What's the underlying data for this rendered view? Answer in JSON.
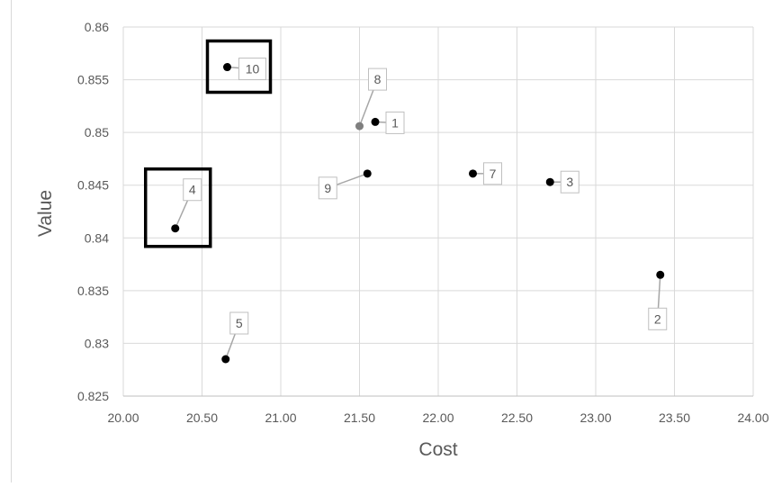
{
  "chart_data": {
    "type": "scatter",
    "xlabel": "Cost",
    "ylabel": "Value",
    "xlim": [
      20.0,
      24.0
    ],
    "ylim": [
      0.825,
      0.86
    ],
    "x_ticks": [
      "20.00",
      "20.50",
      "21.00",
      "21.50",
      "22.00",
      "22.50",
      "23.00",
      "23.50",
      "24.00"
    ],
    "y_ticks": [
      "0.825",
      "0.83",
      "0.835",
      "0.84",
      "0.845",
      "0.85",
      "0.855",
      "0.86"
    ],
    "grid": true,
    "points": [
      {
        "label": "1",
        "x": 21.6,
        "y": 0.851,
        "color": "#000000"
      },
      {
        "label": "2",
        "x": 23.41,
        "y": 0.8365,
        "color": "#000000"
      },
      {
        "label": "3",
        "x": 22.71,
        "y": 0.8453,
        "color": "#000000"
      },
      {
        "label": "4",
        "x": 20.33,
        "y": 0.8409,
        "color": "#000000",
        "highlighted": true
      },
      {
        "label": "5",
        "x": 20.65,
        "y": 0.8285,
        "color": "#000000"
      },
      {
        "label": "7",
        "x": 22.22,
        "y": 0.8461,
        "color": "#000000"
      },
      {
        "label": "8",
        "x": 21.5,
        "y": 0.8506,
        "color": "#7f7f7f"
      },
      {
        "label": "9",
        "x": 21.55,
        "y": 0.8461,
        "color": "#000000"
      },
      {
        "label": "10",
        "x": 20.66,
        "y": 0.8562,
        "color": "#000000",
        "highlighted": true
      }
    ]
  }
}
